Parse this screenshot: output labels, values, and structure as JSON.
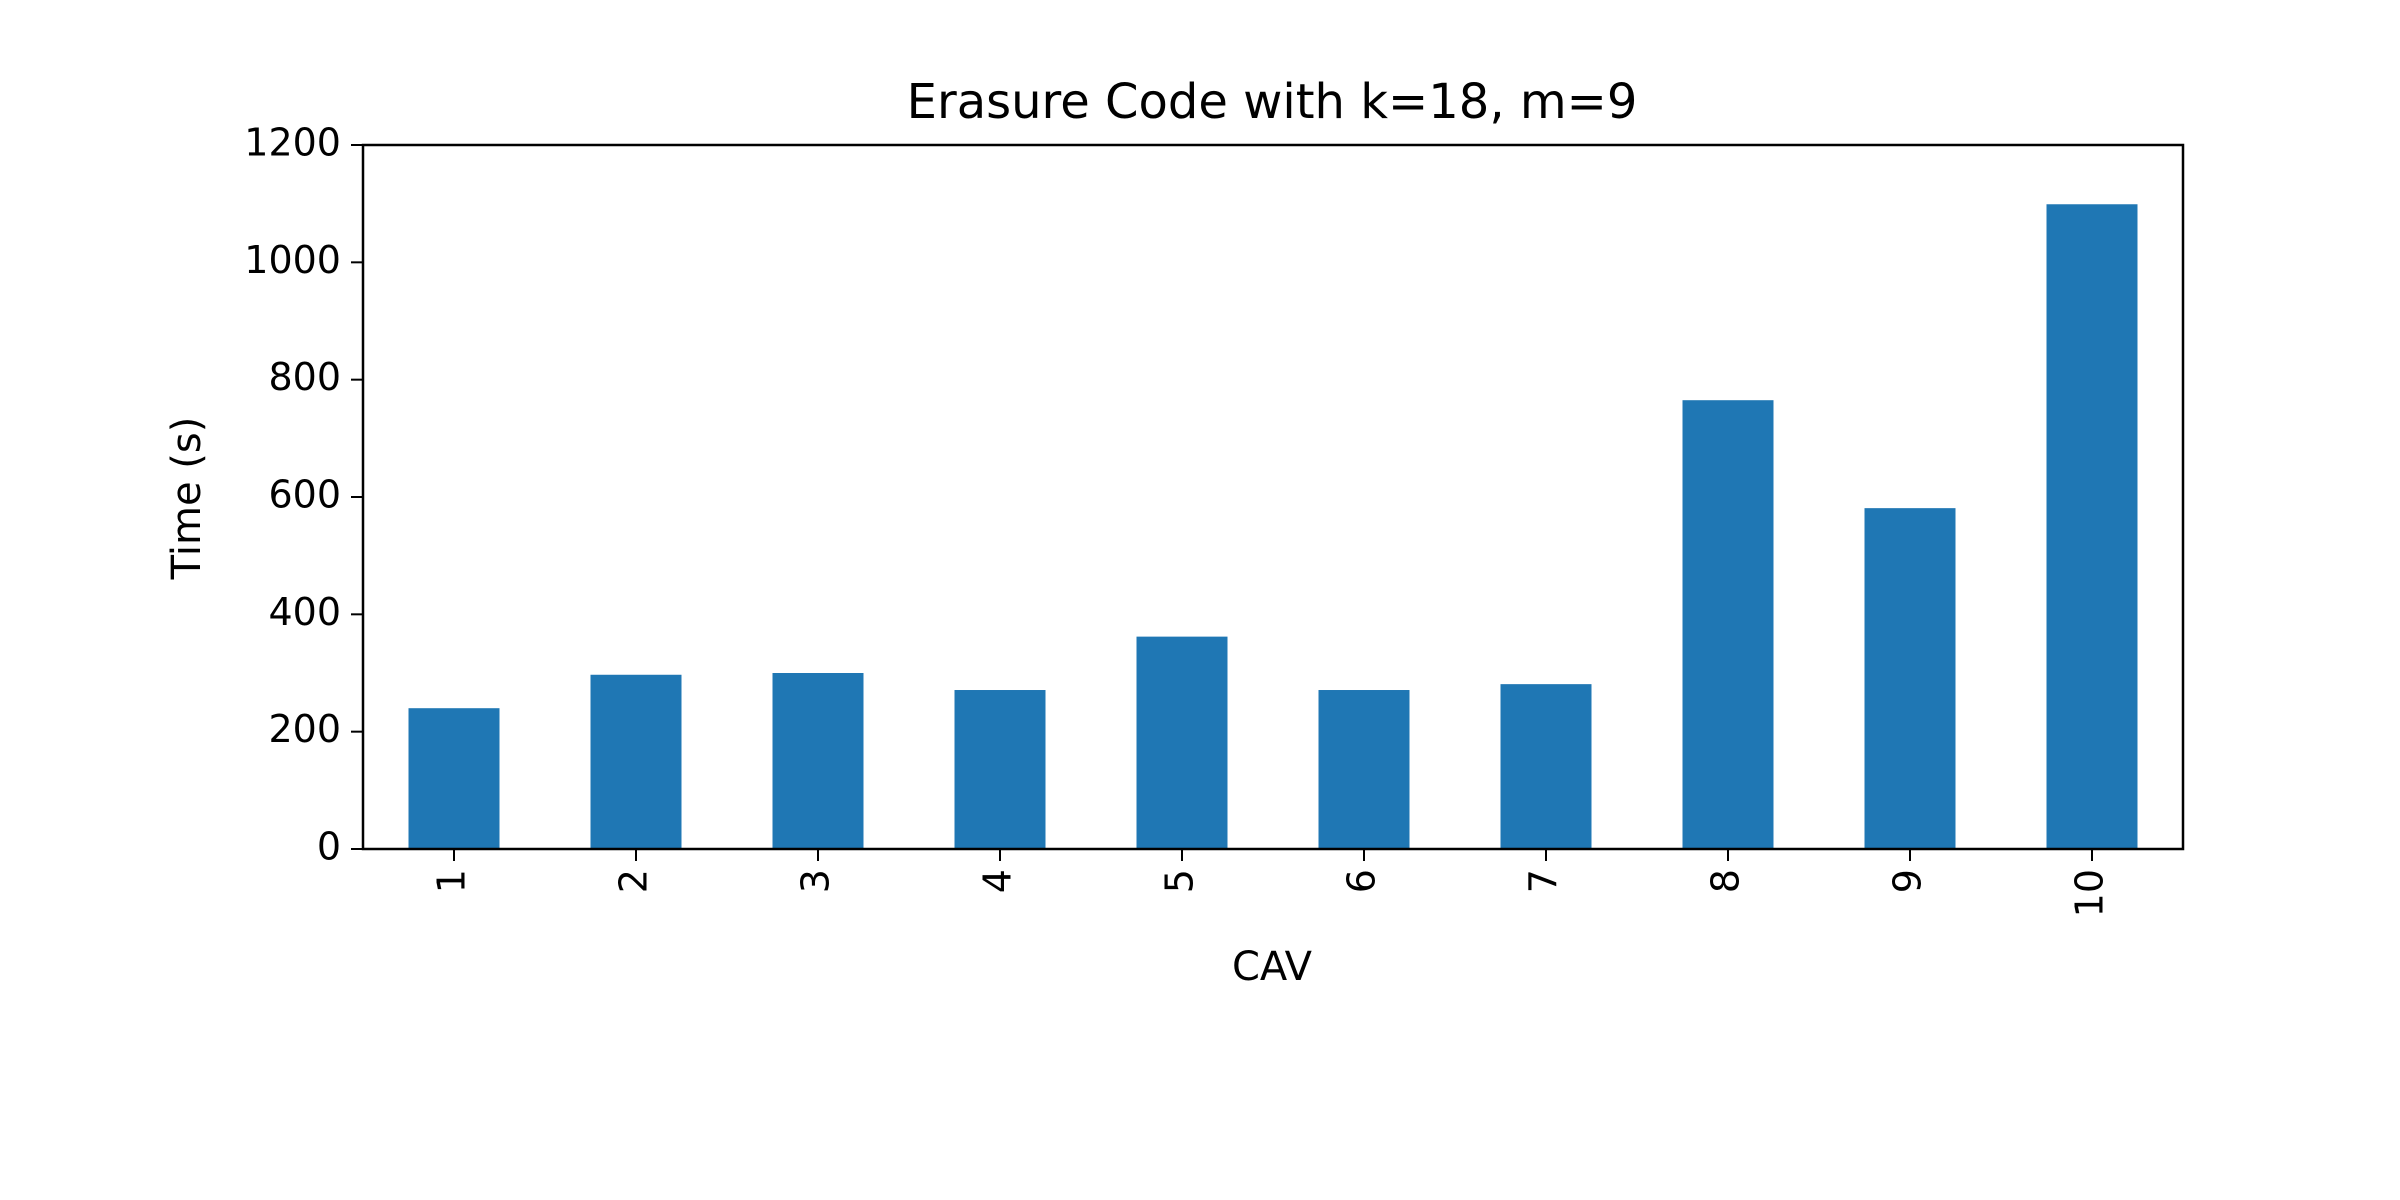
{
  "chart_data": {
    "type": "bar",
    "title": "Erasure Code with k=18, m=9",
    "xlabel": "CAV",
    "ylabel": "Time (s)",
    "categories": [
      "1",
      "2",
      "3",
      "4",
      "5",
      "6",
      "7",
      "8",
      "9",
      "10"
    ],
    "values": [
      240,
      297,
      300,
      271,
      362,
      271,
      281,
      765,
      581,
      1099
    ],
    "ylim": [
      0,
      1200
    ],
    "yticks": [
      0,
      200,
      400,
      600,
      800,
      1000,
      1200
    ],
    "xtick_rotation": "vertical",
    "grid": false,
    "legend": "none",
    "bar_color": "#1f77b4"
  }
}
